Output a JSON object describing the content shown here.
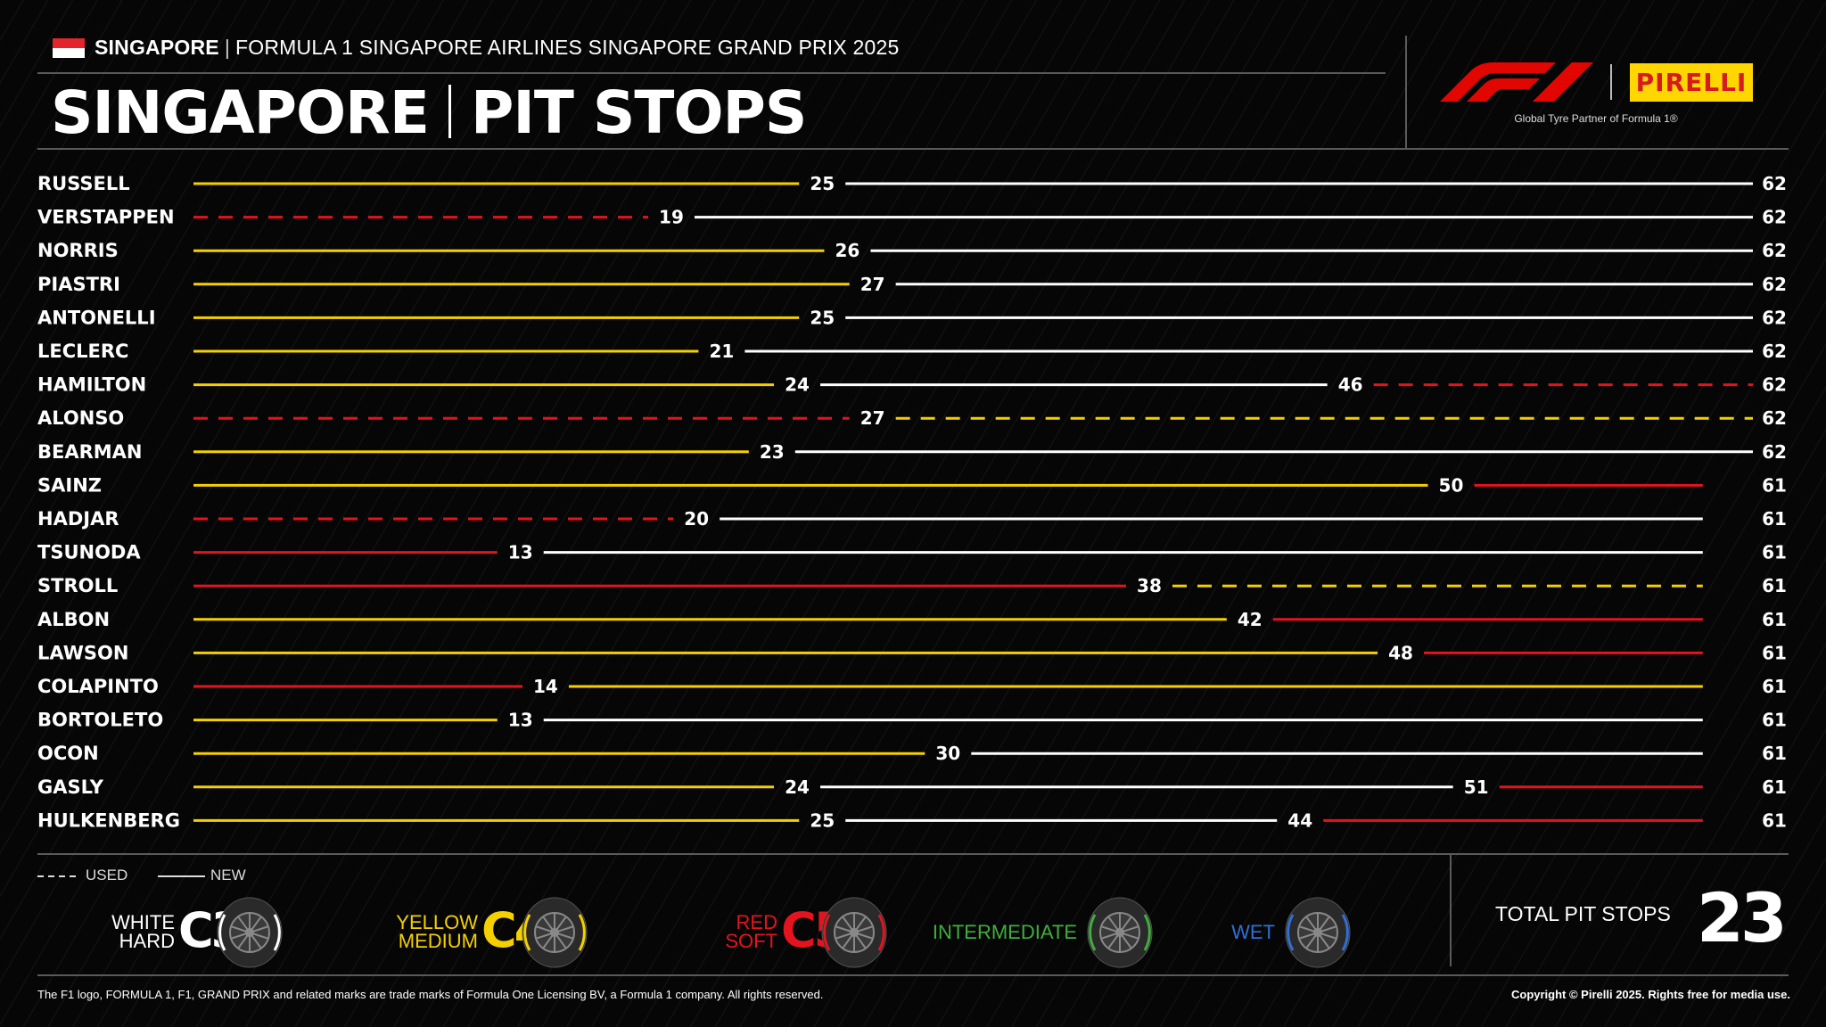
{
  "header": {
    "country": "SINGAPORE",
    "event": "FORMULA 1 SINGAPORE AIRLINES SINGAPORE GRAND PRIX 2025",
    "title_left": "SINGAPORE",
    "title_right": "PIT STOPS",
    "logo_f1": "F1",
    "logo_pirelli": "PIRELLI",
    "tagline": "Global Tyre Partner of Formula 1®"
  },
  "colors": {
    "C3": "#ffffff",
    "C4": "#f5d000",
    "C5": "#e3141e",
    "INTERMEDIATE": "#3fae3f",
    "WET": "#2f6fd6",
    "background": "#050505"
  },
  "chart_data": {
    "type": "stint-timeline",
    "x_unit": "lap",
    "drivers": [
      {
        "name": "RUSSELL",
        "stints": [
          {
            "compound": "C4",
            "used": false,
            "end": 25
          },
          {
            "compound": "C3",
            "used": false,
            "end": 62
          }
        ]
      },
      {
        "name": "VERSTAPPEN",
        "stints": [
          {
            "compound": "C5",
            "used": true,
            "end": 19
          },
          {
            "compound": "C3",
            "used": false,
            "end": 62
          }
        ]
      },
      {
        "name": "NORRIS",
        "stints": [
          {
            "compound": "C4",
            "used": false,
            "end": 26
          },
          {
            "compound": "C3",
            "used": false,
            "end": 62
          }
        ]
      },
      {
        "name": "PIASTRI",
        "stints": [
          {
            "compound": "C4",
            "used": false,
            "end": 27
          },
          {
            "compound": "C3",
            "used": false,
            "end": 62
          }
        ]
      },
      {
        "name": "ANTONELLI",
        "stints": [
          {
            "compound": "C4",
            "used": false,
            "end": 25
          },
          {
            "compound": "C3",
            "used": false,
            "end": 62
          }
        ]
      },
      {
        "name": "LECLERC",
        "stints": [
          {
            "compound": "C4",
            "used": false,
            "end": 21
          },
          {
            "compound": "C3",
            "used": false,
            "end": 62
          }
        ]
      },
      {
        "name": "HAMILTON",
        "stints": [
          {
            "compound": "C4",
            "used": false,
            "end": 24
          },
          {
            "compound": "C3",
            "used": false,
            "end": 46
          },
          {
            "compound": "C5",
            "used": true,
            "end": 62
          }
        ]
      },
      {
        "name": "ALONSO",
        "stints": [
          {
            "compound": "C5",
            "used": true,
            "end": 27
          },
          {
            "compound": "C4",
            "used": true,
            "end": 62
          }
        ]
      },
      {
        "name": "BEARMAN",
        "stints": [
          {
            "compound": "C4",
            "used": false,
            "end": 23
          },
          {
            "compound": "C3",
            "used": false,
            "end": 62
          }
        ]
      },
      {
        "name": "SAINZ",
        "stints": [
          {
            "compound": "C4",
            "used": false,
            "end": 50
          },
          {
            "compound": "C5",
            "used": false,
            "end": 61
          }
        ]
      },
      {
        "name": "HADJAR",
        "stints": [
          {
            "compound": "C5",
            "used": true,
            "end": 20
          },
          {
            "compound": "C3",
            "used": false,
            "end": 61
          }
        ]
      },
      {
        "name": "TSUNODA",
        "stints": [
          {
            "compound": "C5",
            "used": false,
            "end": 13
          },
          {
            "compound": "C3",
            "used": false,
            "end": 61
          }
        ]
      },
      {
        "name": "STROLL",
        "stints": [
          {
            "compound": "C5",
            "used": false,
            "end": 38
          },
          {
            "compound": "C4",
            "used": true,
            "end": 61
          }
        ]
      },
      {
        "name": "ALBON",
        "stints": [
          {
            "compound": "C4",
            "used": false,
            "end": 42
          },
          {
            "compound": "C5",
            "used": false,
            "end": 61
          }
        ]
      },
      {
        "name": "LAWSON",
        "stints": [
          {
            "compound": "C4",
            "used": false,
            "end": 48
          },
          {
            "compound": "C5",
            "used": false,
            "end": 61
          }
        ]
      },
      {
        "name": "COLAPINTO",
        "stints": [
          {
            "compound": "C5",
            "used": false,
            "end": 14
          },
          {
            "compound": "C4",
            "used": false,
            "end": 61
          }
        ]
      },
      {
        "name": "BORTOLETO",
        "stints": [
          {
            "compound": "C4",
            "used": false,
            "end": 13
          },
          {
            "compound": "C3",
            "used": false,
            "end": 61
          }
        ]
      },
      {
        "name": "OCON",
        "stints": [
          {
            "compound": "C4",
            "used": false,
            "end": 30
          },
          {
            "compound": "C3",
            "used": false,
            "end": 61
          }
        ]
      },
      {
        "name": "GASLY",
        "stints": [
          {
            "compound": "C4",
            "used": false,
            "end": 24
          },
          {
            "compound": "C3",
            "used": false,
            "end": 51
          },
          {
            "compound": "C5",
            "used": false,
            "end": 61
          }
        ]
      },
      {
        "name": "HULKENBERG",
        "stints": [
          {
            "compound": "C4",
            "used": false,
            "end": 25
          },
          {
            "compound": "C3",
            "used": false,
            "end": 44
          },
          {
            "compound": "C5",
            "used": false,
            "end": 61
          }
        ]
      }
    ],
    "xlim": [
      0,
      62
    ]
  },
  "legend": {
    "used": "USED",
    "new": "NEW",
    "tyres": [
      {
        "line1": "WHITE",
        "line2": "HARD",
        "code": "C3",
        "color": "#ffffff"
      },
      {
        "line1": "YELLOW",
        "line2": "MEDIUM",
        "code": "C4",
        "color": "#f5d000"
      },
      {
        "line1": "RED",
        "line2": "SOFT",
        "code": "C5",
        "color": "#e3141e"
      },
      {
        "line1": "INTERMEDIATE",
        "line2": "",
        "code": "",
        "color": "#3fae3f"
      },
      {
        "line1": "WET",
        "line2": "",
        "code": "",
        "color": "#2f6fd6"
      }
    ]
  },
  "total": {
    "label": "TOTAL PIT STOPS",
    "value": "23"
  },
  "footer": {
    "left": "The F1 logo, FORMULA 1, F1, GRAND PRIX and related marks are trade marks of Formula One Licensing BV, a Formula 1 company. All rights reserved.",
    "right": "Copyright © Pirelli 2025. Rights free for media use."
  }
}
